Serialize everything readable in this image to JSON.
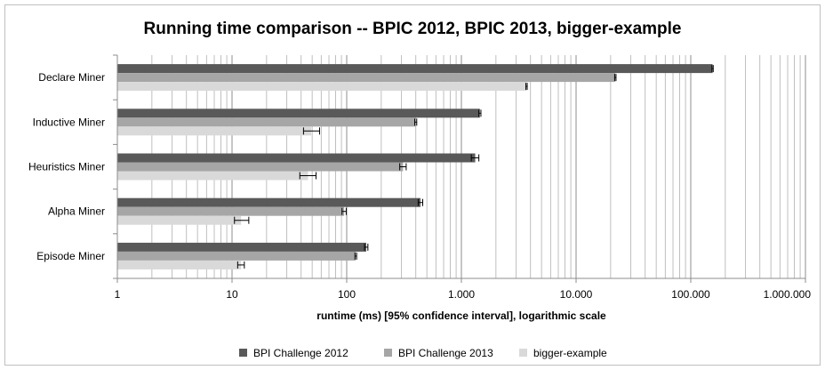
{
  "chart_data": {
    "type": "bar",
    "orientation": "horizontal",
    "title": "Running time comparison -- BPIC 2012, BPIC 2013, bigger-example",
    "xlabel": "runtime (ms) [95% confidence interval], logarithmic scale",
    "ylabel": "",
    "xscale": "log",
    "xlim": [
      1,
      1000000
    ],
    "xticks": [
      1,
      10,
      100,
      1000,
      10000,
      100000,
      1000000
    ],
    "xtick_labels": [
      "1",
      "10",
      "100",
      "1.000",
      "10.000",
      "100.000",
      "1.000.000"
    ],
    "grid": "vertical major and minor",
    "legend_position": "bottom",
    "categories": [
      "Declare Miner",
      "Inductive Miner",
      "Heuristics Miner",
      "Alpha Miner",
      "Episode Miner"
    ],
    "series": [
      {
        "name": "BPI Challenge 2012",
        "color": "#595959",
        "values": [
          155000,
          1450,
          1320,
          440,
          148
        ],
        "ci_low": [
          153000,
          1420,
          1220,
          420,
          143
        ],
        "ci_high": [
          157000,
          1480,
          1420,
          460,
          153
        ]
      },
      {
        "name": "BPI Challenge 2013",
        "color": "#a6a6a6",
        "values": [
          22000,
          400,
          310,
          95,
          120
        ],
        "ci_low": [
          21700,
          392,
          290,
          91,
          118
        ],
        "ci_high": [
          22300,
          408,
          330,
          99,
          122
        ]
      },
      {
        "name": "bigger-example",
        "color": "#d9d9d9",
        "values": [
          3700,
          49,
          46,
          12,
          12
        ],
        "ci_low": [
          3650,
          42,
          39,
          10.5,
          11.2
        ],
        "ci_high": [
          3750,
          58,
          54,
          14,
          12.8
        ]
      }
    ]
  }
}
